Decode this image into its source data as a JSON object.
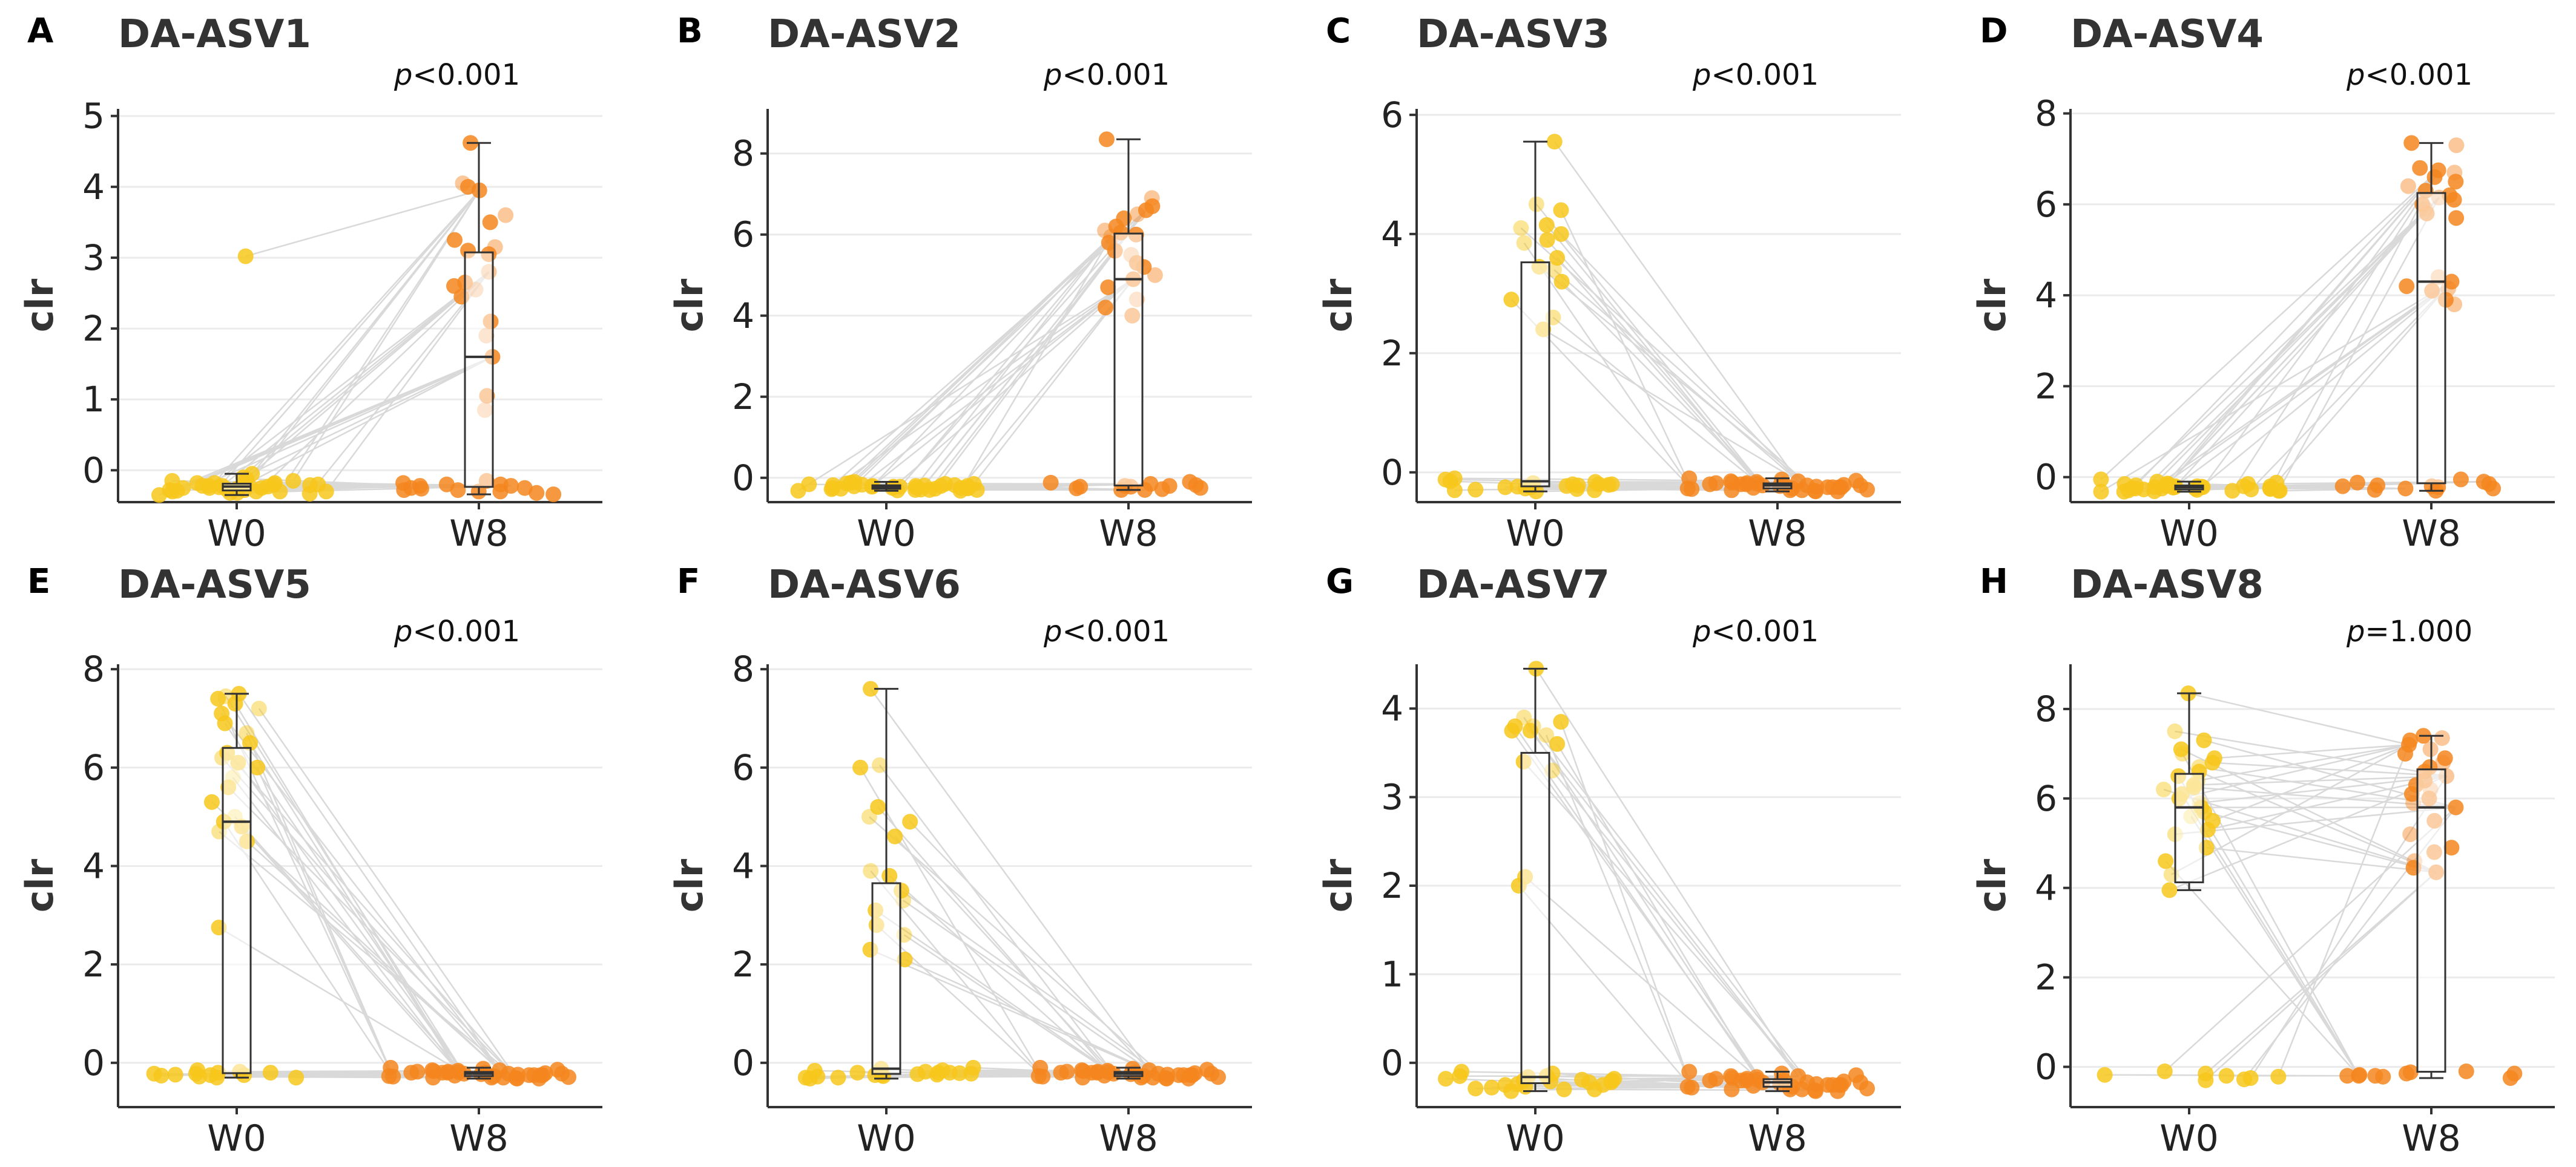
{
  "colors": {
    "w0": "#F7C71B",
    "w8": "#F4861E"
  },
  "chart_data": [
    {
      "type": "box-scatter-paired",
      "letter": "A",
      "title": "DA-ASV1",
      "p_label": "p",
      "p_value": "<0.001",
      "ylabel": "clr",
      "categories": [
        "W0",
        "W8"
      ],
      "ylim": [
        -0.45,
        5.1
      ],
      "yticks": [
        0,
        1,
        2,
        3,
        4,
        5
      ],
      "w0": [
        3.02,
        -0.05,
        -0.1,
        -0.12,
        -0.15,
        -0.15,
        -0.18,
        -0.18,
        -0.2,
        -0.2,
        -0.2,
        -0.22,
        -0.22,
        -0.22,
        -0.25,
        -0.25,
        -0.25,
        -0.26,
        -0.28,
        -0.28,
        -0.3,
        -0.3,
        -0.3,
        -0.3,
        -0.32,
        -0.32,
        -0.33,
        -0.35,
        -0.18,
        -0.2,
        -0.24,
        -0.27,
        -0.29,
        -0.21,
        -0.23
      ],
      "w8": [
        4.62,
        4.05,
        4.0,
        3.95,
        3.6,
        3.5,
        3.25,
        3.15,
        3.1,
        3.05,
        2.8,
        2.65,
        2.6,
        2.55,
        2.45,
        2.1,
        1.9,
        1.6,
        1.05,
        0.85,
        -0.15,
        -0.18,
        -0.2,
        -0.2,
        -0.22,
        -0.25,
        -0.25,
        -0.28,
        -0.3,
        -0.3,
        -0.32,
        -0.22,
        -0.26,
        -0.28,
        -0.34
      ]
    },
    {
      "type": "box-scatter-paired",
      "letter": "B",
      "title": "DA-ASV2",
      "p_label": "p",
      "p_value": "<0.001",
      "ylabel": "clr",
      "categories": [
        "W0",
        "W8"
      ],
      "ylim": [
        -0.6,
        9.1
      ],
      "yticks": [
        0,
        2,
        4,
        6,
        8
      ],
      "w0": [
        -0.1,
        -0.12,
        -0.15,
        -0.15,
        -0.18,
        -0.18,
        -0.2,
        -0.2,
        -0.2,
        -0.22,
        -0.22,
        -0.22,
        -0.25,
        -0.25,
        -0.25,
        -0.27,
        -0.27,
        -0.28,
        -0.3,
        -0.3,
        -0.3,
        -0.32,
        -0.32,
        -0.14,
        -0.16,
        -0.19,
        -0.21,
        -0.23,
        -0.24,
        -0.26,
        -0.29,
        -0.31,
        -0.17,
        -0.2,
        -0.25
      ],
      "w8": [
        8.35,
        6.9,
        6.7,
        6.6,
        6.5,
        6.4,
        6.2,
        6.1,
        6.05,
        6.0,
        5.95,
        5.8,
        5.6,
        5.5,
        5.3,
        5.2,
        5.0,
        4.9,
        4.7,
        4.4,
        4.2,
        4.0,
        -0.1,
        -0.12,
        -0.15,
        -0.18,
        -0.2,
        -0.2,
        -0.22,
        -0.25,
        -0.28,
        -0.3,
        -0.22,
        -0.26,
        -0.3
      ]
    },
    {
      "type": "box-scatter-paired",
      "letter": "C",
      "title": "DA-ASV3",
      "p_label": "p",
      "p_value": "<0.001",
      "ylabel": "clr",
      "categories": [
        "W0",
        "W8"
      ],
      "ylim": [
        -0.5,
        6.1
      ],
      "yticks": [
        0,
        2,
        4,
        6
      ],
      "w0": [
        5.55,
        4.5,
        4.4,
        4.15,
        4.1,
        4.0,
        3.9,
        3.85,
        3.6,
        3.45,
        3.4,
        3.2,
        2.9,
        2.6,
        2.4,
        -0.1,
        -0.12,
        -0.15,
        -0.18,
        -0.2,
        -0.2,
        -0.22,
        -0.25,
        -0.25,
        -0.28,
        -0.3,
        -0.3,
        -0.32,
        -0.16,
        -0.2,
        -0.24,
        -0.27,
        -0.29,
        -0.21,
        -0.23
      ],
      "w8": [
        -0.1,
        -0.12,
        -0.15,
        -0.15,
        -0.18,
        -0.18,
        -0.2,
        -0.2,
        -0.2,
        -0.22,
        -0.22,
        -0.22,
        -0.25,
        -0.25,
        -0.25,
        -0.27,
        -0.27,
        -0.28,
        -0.3,
        -0.3,
        -0.3,
        -0.32,
        -0.32,
        -0.14,
        -0.16,
        -0.19,
        -0.21,
        -0.23,
        -0.24,
        -0.26,
        -0.29,
        -0.31,
        -0.17,
        -0.2,
        -0.25
      ]
    },
    {
      "type": "box-scatter-paired",
      "letter": "D",
      "title": "DA-ASV4",
      "p_label": "p",
      "p_value": "<0.001",
      "ylabel": "clr",
      "categories": [
        "W0",
        "W8"
      ],
      "ylim": [
        -0.55,
        8.1
      ],
      "yticks": [
        0,
        2,
        4,
        6,
        8
      ],
      "w0": [
        -0.05,
        -0.1,
        -0.12,
        -0.15,
        -0.15,
        -0.18,
        -0.18,
        -0.2,
        -0.2,
        -0.2,
        -0.22,
        -0.22,
        -0.22,
        -0.25,
        -0.25,
        -0.25,
        -0.27,
        -0.27,
        -0.28,
        -0.3,
        -0.3,
        -0.3,
        -0.32,
        -0.32,
        -0.14,
        -0.16,
        -0.19,
        -0.21,
        -0.23,
        -0.24,
        -0.26,
        -0.29,
        -0.31,
        -0.2,
        -0.25
      ],
      "w8": [
        7.35,
        7.3,
        6.8,
        6.75,
        6.7,
        6.6,
        6.5,
        6.4,
        6.3,
        6.2,
        6.15,
        6.1,
        6.0,
        5.9,
        5.8,
        5.7,
        4.4,
        4.3,
        4.2,
        4.15,
        4.1,
        3.9,
        3.8,
        -0.05,
        -0.1,
        -0.12,
        -0.15,
        -0.18,
        -0.2,
        -0.2,
        -0.22,
        -0.25,
        -0.28,
        -0.3,
        -0.25
      ]
    },
    {
      "type": "box-scatter-paired",
      "letter": "E",
      "title": "DA-ASV5",
      "p_label": "p",
      "p_value": "<0.001",
      "ylabel": "clr",
      "categories": [
        "W0",
        "W8"
      ],
      "ylim": [
        -0.9,
        8.1
      ],
      "yticks": [
        0,
        2,
        4,
        6,
        8
      ],
      "w0": [
        7.5,
        7.45,
        7.4,
        7.3,
        7.2,
        7.1,
        6.9,
        6.7,
        6.5,
        6.3,
        6.2,
        6.1,
        6.0,
        5.8,
        5.6,
        5.3,
        5.0,
        4.9,
        4.8,
        4.7,
        4.5,
        2.75,
        -0.15,
        -0.18,
        -0.2,
        -0.2,
        -0.22,
        -0.25,
        -0.25,
        -0.28,
        -0.3,
        -0.3,
        -0.22,
        -0.26,
        -0.24
      ],
      "w8": [
        -0.1,
        -0.12,
        -0.15,
        -0.15,
        -0.18,
        -0.18,
        -0.2,
        -0.2,
        -0.2,
        -0.22,
        -0.22,
        -0.22,
        -0.25,
        -0.25,
        -0.25,
        -0.27,
        -0.27,
        -0.28,
        -0.3,
        -0.3,
        -0.3,
        -0.32,
        -0.32,
        -0.14,
        -0.16,
        -0.19,
        -0.21,
        -0.23,
        -0.24,
        -0.26,
        -0.29,
        -0.31,
        -0.17,
        -0.2,
        -0.25
      ]
    },
    {
      "type": "box-scatter-paired",
      "letter": "F",
      "title": "DA-ASV6",
      "p_label": "p",
      "p_value": "<0.001",
      "ylabel": "clr",
      "categories": [
        "W0",
        "W8"
      ],
      "ylim": [
        -0.9,
        8.1
      ],
      "yticks": [
        0,
        2,
        4,
        6,
        8
      ],
      "w0": [
        7.6,
        6.05,
        6.0,
        5.2,
        5.0,
        4.9,
        4.6,
        3.9,
        3.8,
        3.5,
        3.3,
        3.1,
        2.8,
        2.6,
        2.3,
        2.1,
        -0.1,
        -0.12,
        -0.15,
        -0.18,
        -0.2,
        -0.2,
        -0.22,
        -0.25,
        -0.25,
        -0.28,
        -0.3,
        -0.3,
        -0.32,
        -0.16,
        -0.2,
        -0.24,
        -0.27,
        -0.21,
        -0.23
      ],
      "w8": [
        -0.1,
        -0.12,
        -0.15,
        -0.15,
        -0.18,
        -0.18,
        -0.2,
        -0.2,
        -0.2,
        -0.22,
        -0.22,
        -0.22,
        -0.25,
        -0.25,
        -0.25,
        -0.27,
        -0.27,
        -0.28,
        -0.3,
        -0.3,
        -0.3,
        -0.32,
        -0.32,
        -0.14,
        -0.16,
        -0.19,
        -0.21,
        -0.23,
        -0.24,
        -0.26,
        -0.29,
        -0.31,
        -0.17,
        -0.2,
        -0.25
      ]
    },
    {
      "type": "box-scatter-paired",
      "letter": "G",
      "title": "DA-ASV7",
      "p_label": "p",
      "p_value": "<0.001",
      "ylabel": "clr",
      "categories": [
        "W0",
        "W8"
      ],
      "ylim": [
        -0.5,
        4.5
      ],
      "yticks": [
        0,
        1,
        2,
        3,
        4
      ],
      "w0": [
        4.45,
        3.9,
        3.85,
        3.8,
        3.8,
        3.75,
        3.75,
        3.7,
        3.6,
        3.4,
        3.3,
        2.1,
        2.0,
        -0.1,
        -0.12,
        -0.15,
        -0.15,
        -0.18,
        -0.2,
        -0.2,
        -0.22,
        -0.25,
        -0.25,
        -0.28,
        -0.3,
        -0.3,
        -0.32,
        -0.16,
        -0.19,
        -0.21,
        -0.24,
        -0.27,
        -0.29,
        -0.18,
        -0.22
      ],
      "w8": [
        -0.1,
        -0.12,
        -0.15,
        -0.15,
        -0.18,
        -0.18,
        -0.2,
        -0.2,
        -0.2,
        -0.22,
        -0.22,
        -0.22,
        -0.25,
        -0.25,
        -0.25,
        -0.27,
        -0.27,
        -0.28,
        -0.3,
        -0.3,
        -0.3,
        -0.32,
        -0.32,
        -0.14,
        -0.16,
        -0.19,
        -0.21,
        -0.23,
        -0.24,
        -0.26,
        -0.29,
        -0.31,
        -0.17,
        -0.2,
        -0.25
      ]
    },
    {
      "type": "box-scatter-paired",
      "letter": "H",
      "title": "DA-ASV8",
      "p_label": "p",
      "p_value": "=1.000",
      "ylabel": "clr",
      "categories": [
        "W0",
        "W8"
      ],
      "ylim": [
        -0.9,
        9.0
      ],
      "yticks": [
        0,
        2,
        4,
        6,
        8
      ],
      "w0": [
        8.35,
        7.5,
        7.3,
        7.1,
        7.0,
        6.9,
        6.8,
        6.7,
        6.6,
        6.5,
        6.4,
        6.3,
        6.25,
        6.2,
        6.1,
        6.0,
        5.9,
        5.8,
        5.7,
        5.6,
        5.5,
        5.3,
        5.2,
        4.9,
        4.6,
        4.3,
        3.95,
        -0.1,
        -0.15,
        -0.2,
        -0.22,
        -0.25,
        -0.28,
        -0.3,
        -0.18
      ],
      "w8": [
        7.4,
        7.35,
        7.3,
        7.2,
        7.1,
        7.0,
        6.9,
        6.8,
        6.7,
        6.6,
        6.5,
        6.4,
        6.3,
        6.2,
        6.1,
        6.0,
        5.9,
        5.8,
        5.5,
        5.2,
        4.9,
        4.8,
        4.6,
        4.45,
        4.35,
        -0.1,
        -0.12,
        -0.15,
        -0.15,
        -0.18,
        -0.2,
        -0.2,
        -0.22,
        -0.25,
        -0.2
      ]
    }
  ]
}
